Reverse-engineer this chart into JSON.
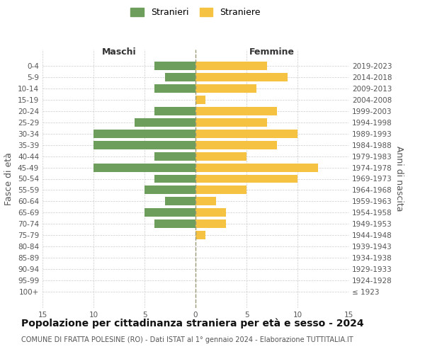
{
  "age_groups": [
    "0-4",
    "5-9",
    "10-14",
    "15-19",
    "20-24",
    "25-29",
    "30-34",
    "35-39",
    "40-44",
    "45-49",
    "50-54",
    "55-59",
    "60-64",
    "65-69",
    "70-74",
    "75-79",
    "80-84",
    "85-89",
    "90-94",
    "95-99",
    "100+"
  ],
  "birth_years": [
    "2019-2023",
    "2014-2018",
    "2009-2013",
    "2004-2008",
    "1999-2003",
    "1994-1998",
    "1989-1993",
    "1984-1988",
    "1979-1983",
    "1974-1978",
    "1969-1973",
    "1964-1968",
    "1959-1963",
    "1954-1958",
    "1949-1953",
    "1944-1948",
    "1939-1943",
    "1934-1938",
    "1929-1933",
    "1924-1928",
    "≤ 1923"
  ],
  "males": [
    4,
    3,
    4,
    0,
    4,
    6,
    10,
    10,
    4,
    10,
    4,
    5,
    3,
    5,
    4,
    0,
    0,
    0,
    0,
    0,
    0
  ],
  "females": [
    7,
    9,
    6,
    1,
    8,
    7,
    10,
    8,
    5,
    12,
    10,
    5,
    2,
    3,
    3,
    1,
    0,
    0,
    0,
    0,
    0
  ],
  "male_color": "#6d9e5b",
  "female_color": "#f5c242",
  "background_color": "#ffffff",
  "grid_color": "#cccccc",
  "title": "Popolazione per cittadinanza straniera per età e sesso - 2024",
  "subtitle": "COMUNE DI FRATTA POLESINE (RO) - Dati ISTAT al 1° gennaio 2024 - Elaborazione TUTTITALIA.IT",
  "xlabel_left": "Maschi",
  "xlabel_right": "Femmine",
  "ylabel_left": "Fasce di età",
  "ylabel_right": "Anni di nascita",
  "legend_male": "Stranieri",
  "legend_female": "Straniere",
  "xlim": 15,
  "bar_height": 0.75,
  "title_fontsize": 10,
  "subtitle_fontsize": 7,
  "tick_fontsize": 7.5,
  "label_fontsize": 9
}
